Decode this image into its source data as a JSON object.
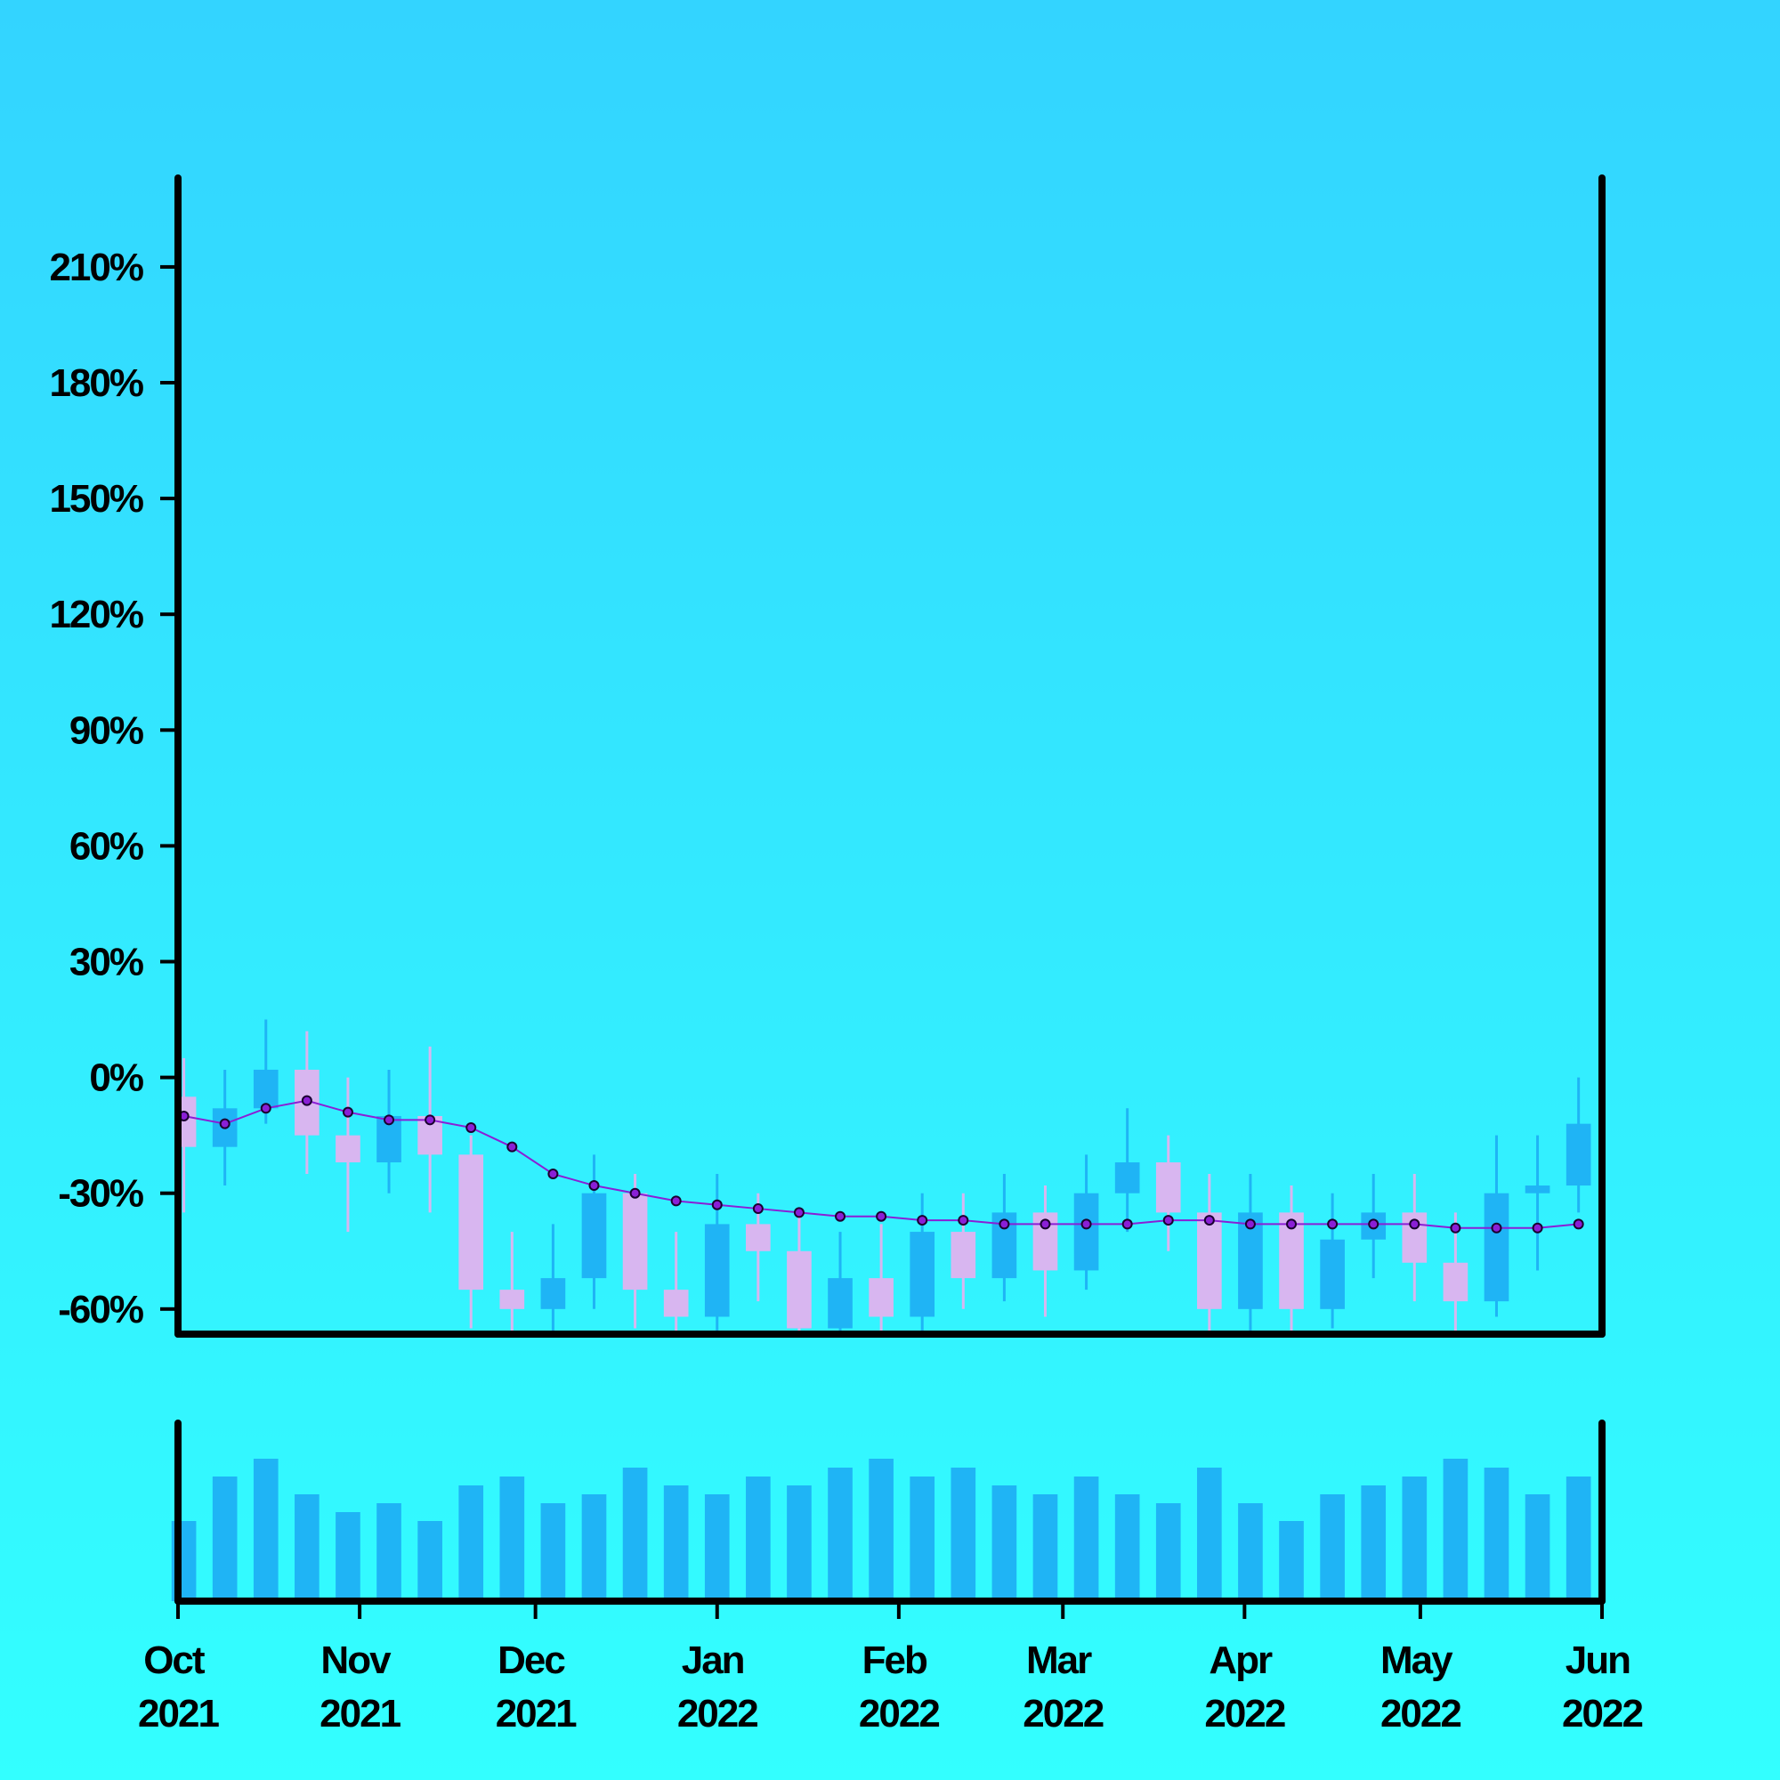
{
  "chart_data": {
    "type": "candlestick",
    "x": [
      1,
      8,
      15,
      22,
      29,
      36,
      43,
      50,
      57,
      64,
      71,
      78,
      85,
      92,
      99,
      106,
      113,
      120,
      127,
      134,
      141,
      148,
      155,
      162,
      169,
      176,
      183,
      190,
      197,
      204,
      211,
      218,
      225,
      232,
      239
    ],
    "open": [
      -5,
      -18,
      -8,
      2,
      -15,
      -22,
      -10,
      -20,
      -55,
      -60,
      -52,
      -30,
      -55,
      -62,
      -38,
      -45,
      -65,
      -52,
      -62,
      -40,
      -52,
      -35,
      -50,
      -30,
      -22,
      -35,
      -60,
      -35,
      -60,
      -42,
      -35,
      -48,
      -58,
      -30,
      -28
    ],
    "high": [
      5,
      2,
      15,
      12,
      0,
      2,
      8,
      -15,
      -40,
      -38,
      -20,
      -25,
      -40,
      -25,
      -30,
      -35,
      -40,
      -38,
      -30,
      -30,
      -25,
      -28,
      -20,
      -8,
      -15,
      -25,
      -25,
      -28,
      -30,
      -25,
      -25,
      -35,
      -15,
      -15,
      0
    ],
    "low": [
      -35,
      -28,
      -12,
      -25,
      -40,
      -30,
      -35,
      -65,
      -70,
      -70,
      -60,
      -65,
      -70,
      -68,
      -58,
      -70,
      -70,
      -70,
      -68,
      -60,
      -58,
      -62,
      -55,
      -40,
      -45,
      -68,
      -68,
      -68,
      -65,
      -52,
      -58,
      -68,
      -62,
      -50,
      -35
    ],
    "close": [
      -18,
      -8,
      2,
      -15,
      -22,
      -10,
      -20,
      -55,
      -60,
      -52,
      -30,
      -55,
      -62,
      -38,
      -45,
      -65,
      -52,
      -62,
      -40,
      -52,
      -35,
      -50,
      -30,
      -22,
      -35,
      -60,
      -35,
      -60,
      -42,
      -35,
      -48,
      -58,
      -30,
      -28,
      -12
    ],
    "volume": [
      45,
      70,
      80,
      60,
      50,
      55,
      45,
      65,
      70,
      55,
      60,
      75,
      65,
      60,
      70,
      65,
      75,
      80,
      70,
      75,
      65,
      60,
      70,
      60,
      55,
      75,
      55,
      45,
      60,
      65,
      70,
      80,
      75,
      60,
      70
    ],
    "moving_average": {
      "values": [
        -10,
        -12,
        -8,
        -6,
        -9,
        -11,
        -11,
        -13,
        -18,
        -25,
        -28,
        -30,
        -32,
        -33,
        -34,
        -35,
        -36,
        -36,
        -37,
        -37,
        -38,
        -38,
        -38,
        -38,
        -37,
        -37,
        -38,
        -38,
        -38,
        -38,
        -38,
        -39,
        -39,
        -39,
        -38
      ],
      "color": "#8a1fd6"
    },
    "up_color": "#1fb4f5",
    "down_color": "#d8b6f0",
    "volume_color": "#1fb4f5",
    "xlim": [
      0,
      243
    ],
    "xticks": [
      {
        "value": 0,
        "label": "Oct 2021"
      },
      {
        "value": 31,
        "label": "Nov 2021"
      },
      {
        "value": 61,
        "label": "Dec 2021"
      },
      {
        "value": 92,
        "label": "Jan 2022"
      },
      {
        "value": 123,
        "label": "Feb 2022"
      },
      {
        "value": 151,
        "label": "Mar 2022"
      },
      {
        "value": 182,
        "label": "Apr 2022"
      },
      {
        "value": 212,
        "label": "May 2022"
      },
      {
        "value": 243,
        "label": "Jun 2022"
      }
    ],
    "ylim": [
      -66.5,
      233.5
    ],
    "yticks": [
      {
        "value": -60,
        "label": "-60%"
      },
      {
        "value": -30,
        "label": "-30%"
      },
      {
        "value": 0,
        "label": "0%"
      },
      {
        "value": 30,
        "label": "30%"
      },
      {
        "value": 60,
        "label": "60%"
      },
      {
        "value": 90,
        "label": "90%"
      },
      {
        "value": 120,
        "label": "120%"
      },
      {
        "value": 150,
        "label": "150%"
      },
      {
        "value": 180,
        "label": "180%"
      },
      {
        "value": 210,
        "label": "210%"
      }
    ],
    "volume_ylim": [
      0,
      100
    ]
  }
}
